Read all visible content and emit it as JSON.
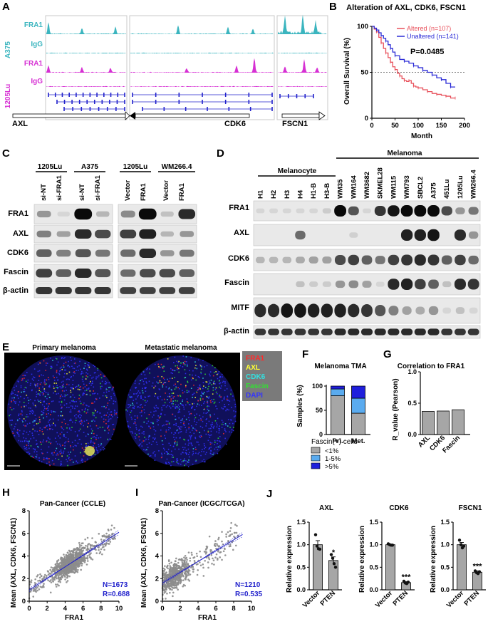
{
  "panels": {
    "A": {
      "letter": "A",
      "cell_lines": [
        "A375",
        "1205Lu"
      ],
      "tracks": [
        "FRA1",
        "IgG",
        "FRA1",
        "IgG"
      ],
      "track_colors": [
        "#3bb5bf",
        "#3bb5bf",
        "#d62fd3",
        "#d62fd3"
      ],
      "genes": [
        "AXL",
        "CDK6",
        "FSCN1"
      ]
    },
    "B": {
      "letter": "B",
      "title": "Alteration of AXL, CDK6, FSCN1",
      "pvalue": "P=0.0485",
      "xlabel": "Month",
      "ylabel": "Overall Survival (%)",
      "xticks": [
        0,
        50,
        100,
        150,
        200
      ],
      "yticks": [
        0,
        50,
        100
      ],
      "series": [
        {
          "name": "Altered (n=107)",
          "color": "#e8505b"
        },
        {
          "name": "Unaltered (n=141)",
          "color": "#2b2bd6"
        }
      ]
    },
    "C": {
      "letter": "C",
      "groups": [
        {
          "line": "1205Lu",
          "lanes": [
            "si-NT",
            "si-FRA1"
          ]
        },
        {
          "line": "A375",
          "lanes": [
            "si-NT",
            "si-FRA1"
          ]
        },
        {
          "line": "1205Lu",
          "lanes": [
            "Vector",
            "FRA1"
          ]
        },
        {
          "line": "WM266.4",
          "lanes": [
            "Vector",
            "FRA1"
          ]
        }
      ],
      "rows": [
        "FRA1",
        "AXL",
        "CDK6",
        "Fascin",
        "β-actin"
      ]
    },
    "D": {
      "letter": "D",
      "group_labels": [
        "Melanocyte",
        "Melanoma"
      ],
      "lanes": [
        "H1",
        "H2",
        "H3",
        "H4",
        "H1-B",
        "H3-B",
        "WM35",
        "WM164",
        "WM3682",
        "SKMEL28",
        "WM115",
        "WM793",
        "SBCL2",
        "A375",
        "451Lu",
        "1205Lu",
        "WM266.4"
      ],
      "rows": [
        "FRA1",
        "AXL",
        "CDK6",
        "Fascin",
        "MITF",
        "β-actin"
      ]
    },
    "E": {
      "letter": "E",
      "images": [
        "Primary melanoma",
        "Metastatic melanoma"
      ],
      "channels": [
        {
          "label": "FRA1",
          "color": "#ff2a2a"
        },
        {
          "label": "AXL",
          "color": "#ffff33"
        },
        {
          "label": "CDK6",
          "color": "#33e0e0"
        },
        {
          "label": "Fascin",
          "color": "#33e033"
        },
        {
          "label": "DAPI",
          "color": "#3333ff"
        }
      ]
    },
    "F": {
      "letter": "F",
      "title": "Melanoma TMA",
      "ylabel": "Samples (%)",
      "legend_title": "Fascin(+) cells",
      "yticks": [
        0,
        50,
        100
      ]
    },
    "G": {
      "letter": "G",
      "title": "Correlation to FRA1",
      "ylabel": "R_value (Pearson)",
      "yticks": [
        "0.0",
        "0.5",
        "1.0"
      ]
    },
    "H": {
      "letter": "H",
      "title": "Pan-Cancer (CCLE)",
      "xlabel": "FRA1",
      "ylabel": "Mean (AXL, CDK6, FSCN1)",
      "n_label": "N=1673",
      "r_label": "R=0.688",
      "xticks": [
        0,
        2,
        4,
        6,
        8,
        10
      ],
      "yticks": [
        0,
        2,
        4,
        6,
        8
      ]
    },
    "I": {
      "letter": "I",
      "title": "Pan-Cancer (ICGC/TCGA)",
      "xlabel": "FRA1",
      "ylabel": "Mean (AXL, CDK6, FSCN1)",
      "n_label": "N=1210",
      "r_label": "R=0.535",
      "xticks": [
        0,
        2,
        4,
        6,
        8,
        10
      ],
      "yticks": [
        0,
        2,
        4,
        6,
        8
      ]
    },
    "J": {
      "letter": "J",
      "ylabel": "Relative expression",
      "yticks": [
        "0.0",
        "0.5",
        "1.0",
        "1.5"
      ]
    }
  },
  "chart_data": [
    {
      "type": "line",
      "panel": "B",
      "title": "Alteration of AXL, CDK6, FSCN1",
      "xlabel": "Month",
      "ylabel": "Overall Survival (%)",
      "xlim": [
        0,
        200
      ],
      "ylim": [
        0,
        100
      ],
      "reference_line": 50,
      "series": [
        {
          "name": "Altered (n=107)",
          "x": [
            0,
            5,
            10,
            15,
            20,
            25,
            30,
            35,
            40,
            45,
            50,
            55,
            60,
            65,
            70,
            75,
            80,
            85,
            90,
            95,
            100,
            110,
            120,
            130,
            140,
            150,
            160,
            170,
            180
          ],
          "y": [
            100,
            97,
            94,
            88,
            82,
            76,
            71,
            66,
            61,
            56,
            53,
            49,
            46,
            43,
            41,
            40,
            41,
            38,
            35,
            34,
            33,
            31,
            29,
            27,
            26,
            25,
            24,
            22,
            22
          ]
        },
        {
          "name": "Unaltered (n=141)",
          "x": [
            0,
            5,
            10,
            15,
            20,
            25,
            30,
            35,
            40,
            45,
            50,
            60,
            70,
            80,
            90,
            100,
            110,
            120,
            130,
            140,
            150,
            160,
            170,
            180
          ],
          "y": [
            100,
            98,
            96,
            93,
            90,
            87,
            84,
            80,
            76,
            72,
            68,
            64,
            62,
            60,
            57,
            55,
            52,
            50,
            47,
            44,
            42,
            38,
            34,
            34
          ]
        }
      ]
    },
    {
      "type": "bar",
      "panel": "F",
      "title": "Melanoma TMA",
      "categories": [
        "Pri.",
        "Met."
      ],
      "ylabel": "Samples (%)",
      "ylim": [
        0,
        100
      ],
      "stacked": true,
      "series": [
        {
          "name": "<1%",
          "color": "#a6a6a6",
          "values": [
            80,
            44
          ]
        },
        {
          "name": "1-5%",
          "color": "#5aabef",
          "values": [
            14,
            31
          ]
        },
        {
          "name": ">5%",
          "color": "#1f1fdc",
          "values": [
            6,
            25
          ]
        }
      ]
    },
    {
      "type": "bar",
      "panel": "G",
      "title": "Correlation to FRA1",
      "categories": [
        "AXL",
        "CDK6",
        "Fascin"
      ],
      "values": [
        0.37,
        0.375,
        0.395
      ],
      "ylabel": "R_value (Pearson)",
      "ylim": [
        0,
        1.0
      ]
    },
    {
      "type": "scatter",
      "panel": "H",
      "title": "Pan-Cancer (CCLE)",
      "xlabel": "FRA1",
      "ylabel": "Mean (AXL, CDK6, FSCN1)",
      "xlim": [
        0,
        10
      ],
      "ylim": [
        0,
        8
      ],
      "n_points": 1673,
      "r": 0.688,
      "fit_line": {
        "x": [
          0,
          10
        ],
        "y": [
          1.0,
          6.1
        ]
      }
    },
    {
      "type": "scatter",
      "panel": "I",
      "title": "Pan-Cancer (ICGC/TCGA)",
      "xlabel": "FRA1",
      "ylabel": "Mean (AXL, CDK6, FSCN1)",
      "xlim": [
        0,
        10
      ],
      "ylim": [
        0,
        8
      ],
      "n_points": 1210,
      "r": 0.535,
      "fit_line": {
        "x": [
          0,
          9
        ],
        "y": [
          1.6,
          5.9
        ]
      }
    },
    {
      "type": "bar",
      "panel": "J",
      "ylabel": "Relative expression",
      "ylim": [
        0,
        1.5
      ],
      "subplots": [
        {
          "title": "AXL",
          "categories": [
            "Vector",
            "PTEN"
          ],
          "values": [
            1.0,
            0.65
          ],
          "errors": [
            0.09,
            0.08
          ],
          "sig": [
            "",
            "*"
          ],
          "points": [
            [
              1.22,
              0.97,
              0.91,
              0.9
            ],
            [
              0.78,
              0.7,
              0.58,
              0.5
            ]
          ]
        },
        {
          "title": "CDK6",
          "categories": [
            "Vector",
            "PTEN"
          ],
          "values": [
            1.0,
            0.16
          ],
          "errors": [
            0.01,
            0.02
          ],
          "sig": [
            "",
            "***"
          ],
          "points": [
            [
              1.02,
              1.0,
              0.99,
              0.99
            ],
            [
              0.19,
              0.15,
              0.14,
              0.17
            ]
          ]
        },
        {
          "title": "FSCN1",
          "categories": [
            "Vector",
            "PTEN"
          ],
          "values": [
            1.0,
            0.39
          ],
          "errors": [
            0.05,
            0.03
          ],
          "sig": [
            "",
            "***"
          ],
          "points": [
            [
              1.1,
              1.0,
              0.93,
              0.97
            ],
            [
              0.42,
              0.38,
              0.36,
              0.4
            ]
          ]
        }
      ]
    }
  ]
}
